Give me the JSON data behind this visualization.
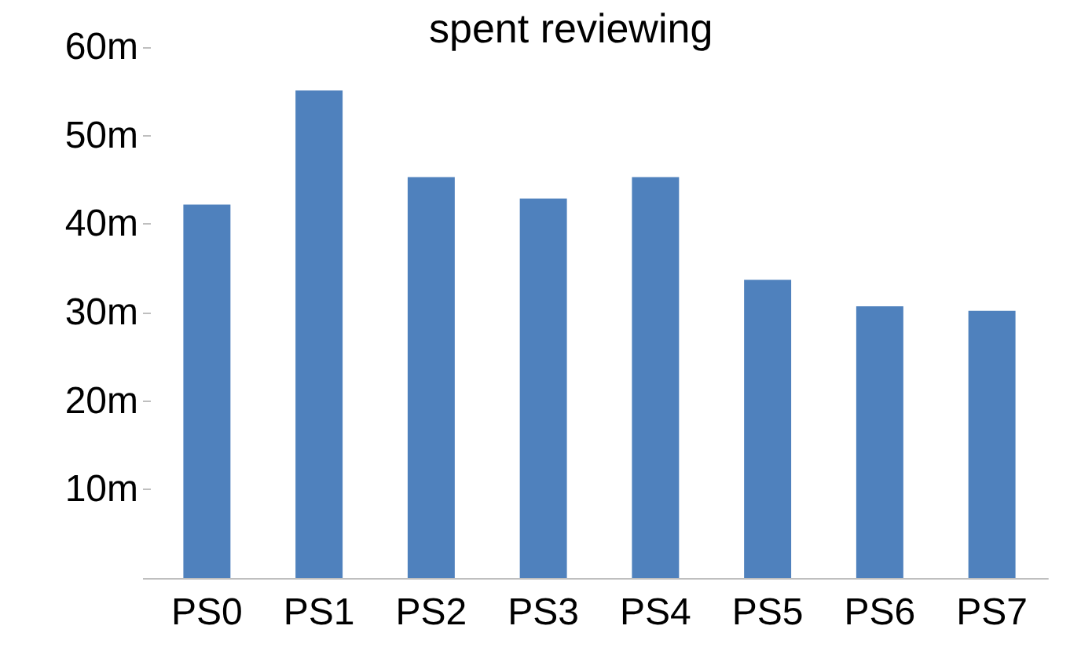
{
  "chart_data": {
    "type": "bar",
    "title": "spent reviewing",
    "categories": [
      "PS0",
      "PS1",
      "PS2",
      "PS3",
      "PS4",
      "PS5",
      "PS6",
      "PS7"
    ],
    "values": [
      42.2,
      55.1,
      45.3,
      42.9,
      45.3,
      33.7,
      30.7,
      30.2
    ],
    "color": "#4f81bd",
    "ylim": [
      0,
      60
    ],
    "yticks": [
      {
        "value": 0,
        "label": null
      },
      {
        "value": 10,
        "label": "10m"
      },
      {
        "value": 20,
        "label": "20m"
      },
      {
        "value": 30,
        "label": "30m"
      },
      {
        "value": 40,
        "label": "40m"
      },
      {
        "value": 50,
        "label": "50m"
      },
      {
        "value": 60,
        "label": "60m"
      }
    ],
    "grid": false
  }
}
